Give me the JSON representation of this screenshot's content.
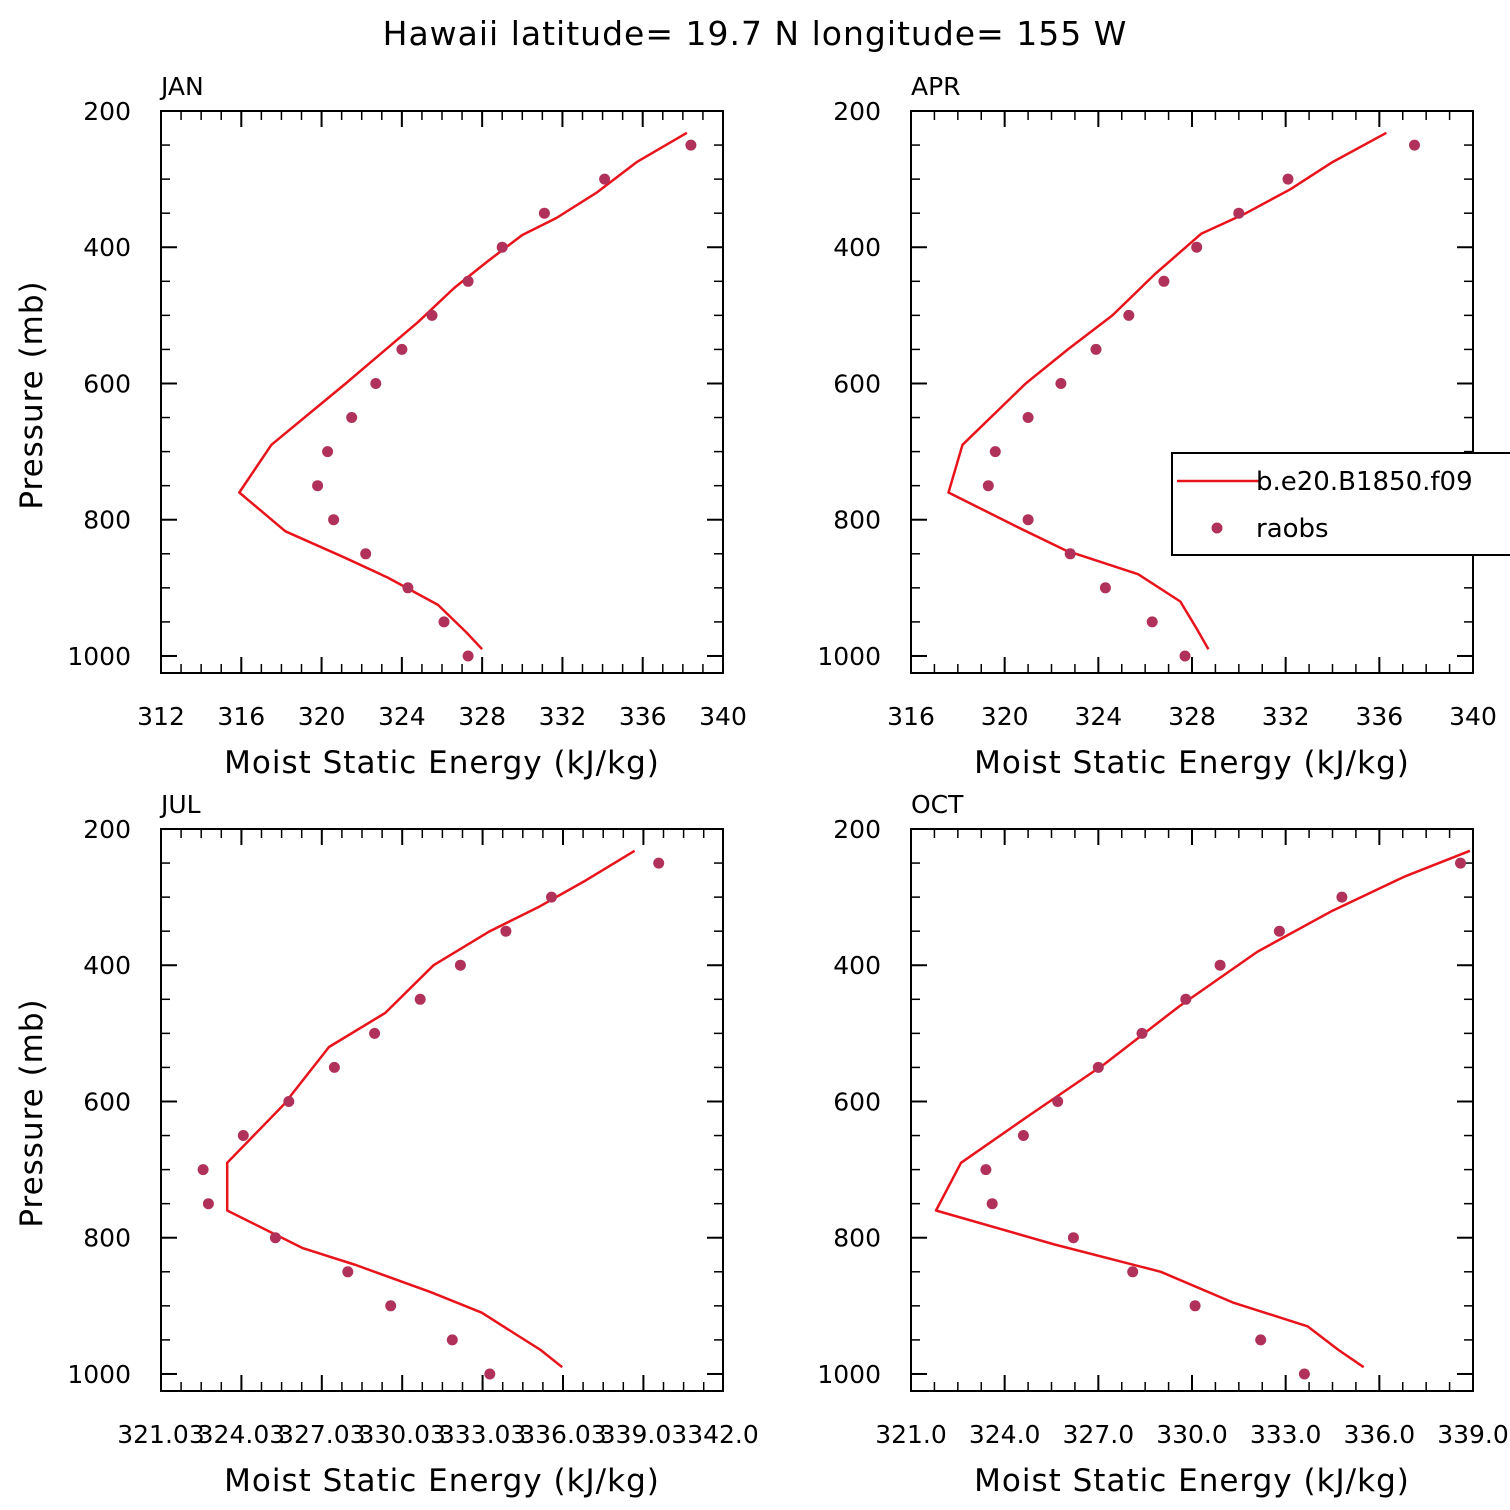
{
  "title": "Hawaii  latitude= 19.7 N longitude= 155 W",
  "chart_data": [
    {
      "type": "line",
      "panel": "JAN",
      "xlabel": "Moist Static Energy (kJ/kg)",
      "ylabel": "Pressure (mb)",
      "xlim": [
        312,
        340
      ],
      "ylim": [
        200,
        1025
      ],
      "y_inverted": true,
      "xticks": [
        312,
        316,
        320,
        324,
        328,
        332,
        336,
        340
      ],
      "xtick_labels": [
        "312",
        "316",
        "320",
        "324",
        "328",
        "332",
        "336",
        "340"
      ],
      "yticks": [
        200,
        400,
        600,
        800,
        1000
      ],
      "ytick_labels": [
        "200",
        "400",
        "600",
        "800",
        "1000"
      ],
      "series": [
        {
          "kind": "line",
          "color": "#e8141c",
          "x": [
            338.2,
            335.7,
            333.7,
            331.7,
            330.0,
            328.3,
            326.6,
            324.8,
            323.0,
            321.2,
            317.5,
            315.9,
            318.2,
            321.1,
            323.3,
            325.8,
            327.2,
            328.0
          ],
          "y": [
            232,
            275,
            320,
            357,
            382,
            420,
            460,
            510,
            555,
            600,
            690,
            760,
            817,
            855,
            885,
            925,
            965,
            990
          ]
        },
        {
          "kind": "scatter",
          "color": "#b0325a",
          "x": [
            338.4,
            334.1,
            331.1,
            329.0,
            327.3,
            325.5,
            324.0,
            322.7,
            321.5,
            320.3,
            319.8,
            320.6,
            322.2,
            324.3,
            326.1,
            327.3
          ],
          "y": [
            250,
            300,
            350,
            400,
            450,
            500,
            550,
            600,
            650,
            700,
            750,
            800,
            850,
            900,
            950,
            1000
          ]
        }
      ]
    },
    {
      "type": "line",
      "panel": "APR",
      "xlabel": "Moist Static Energy (kJ/kg)",
      "ylabel": "",
      "xlim": [
        316,
        340
      ],
      "ylim": [
        200,
        1025
      ],
      "y_inverted": true,
      "xticks": [
        316,
        320,
        324,
        328,
        332,
        336,
        340
      ],
      "xtick_labels": [
        "316",
        "320",
        "324",
        "328",
        "332",
        "336",
        "340"
      ],
      "yticks": [
        200,
        400,
        600,
        800,
        1000
      ],
      "ytick_labels": [
        "200",
        "400",
        "600",
        "800",
        "1000"
      ],
      "series": [
        {
          "kind": "line",
          "color": "#e8141c",
          "x": [
            336.3,
            334.0,
            332.2,
            330.3,
            328.4,
            326.4,
            324.6,
            322.7,
            320.9,
            318.2,
            317.6,
            320.5,
            322.6,
            325.7,
            327.5,
            328.2,
            328.7
          ],
          "y": [
            232,
            275,
            315,
            350,
            380,
            440,
            500,
            550,
            600,
            690,
            760,
            810,
            845,
            880,
            920,
            960,
            990
          ]
        },
        {
          "kind": "scatter",
          "color": "#b0325a",
          "x": [
            337.5,
            332.1,
            330.0,
            328.2,
            326.8,
            325.3,
            323.9,
            322.4,
            321.0,
            319.6,
            319.3,
            321.0,
            322.8,
            324.3,
            326.3,
            327.7
          ],
          "y": [
            250,
            300,
            350,
            400,
            450,
            500,
            550,
            600,
            650,
            700,
            750,
            800,
            850,
            900,
            950,
            1000
          ]
        }
      ]
    },
    {
      "type": "line",
      "panel": "JUL",
      "xlabel": "Moist Static Energy (kJ/kg)",
      "ylabel": "Pressure (mb)",
      "xlim": [
        321.03,
        342.0
      ],
      "ylim": [
        200,
        1025
      ],
      "y_inverted": true,
      "xticks": [
        321.03,
        324.03,
        327.03,
        330.03,
        333.03,
        336.03,
        339.03,
        342.0
      ],
      "xtick_labels": [
        "321.03",
        "324.03",
        "327.03",
        "330.03",
        "333.03",
        "336.03",
        "339.03",
        "342.0"
      ],
      "yticks": [
        200,
        400,
        600,
        800,
        1000
      ],
      "ytick_labels": [
        "200",
        "400",
        "600",
        "800",
        "1000"
      ],
      "series": [
        {
          "kind": "line",
          "color": "#e8141c",
          "x": [
            338.7,
            336.9,
            335.1,
            333.3,
            331.2,
            329.4,
            327.3,
            325.6,
            323.5,
            323.5,
            326.3,
            328.3,
            331.1,
            333.0,
            334.4,
            335.2,
            336.0
          ],
          "y": [
            232,
            275,
            315,
            350,
            400,
            470,
            520,
            605,
            690,
            760,
            815,
            840,
            880,
            910,
            945,
            965,
            990
          ]
        },
        {
          "kind": "scatter",
          "color": "#b0325a",
          "x": [
            339.6,
            335.6,
            333.9,
            332.2,
            330.7,
            329.0,
            327.5,
            325.8,
            324.1,
            322.6,
            322.8,
            325.3,
            328.0,
            329.6,
            331.9,
            333.3
          ],
          "y": [
            250,
            300,
            350,
            400,
            450,
            500,
            550,
            600,
            650,
            700,
            750,
            800,
            850,
            900,
            950,
            1000
          ]
        }
      ]
    },
    {
      "type": "line",
      "panel": "OCT",
      "xlabel": "Moist Static Energy (kJ/kg)",
      "ylabel": "",
      "xlim": [
        321.0,
        339.0
      ],
      "ylim": [
        200,
        1025
      ],
      "y_inverted": true,
      "xticks": [
        321.0,
        324.0,
        327.0,
        330.0,
        333.0,
        336.0,
        339.0
      ],
      "xtick_labels": [
        "321.0",
        "324.0",
        "327.0",
        "330.0",
        "333.0",
        "336.0",
        "339.0"
      ],
      "yticks": [
        200,
        400,
        600,
        800,
        1000
      ],
      "ytick_labels": [
        "200",
        "400",
        "600",
        "800",
        "1000"
      ],
      "series": [
        {
          "kind": "line",
          "color": "#e8141c",
          "x": [
            338.9,
            336.8,
            334.5,
            332.1,
            329.6,
            327.2,
            324.8,
            322.6,
            321.8,
            325.6,
            329.0,
            331.3,
            333.7,
            334.7,
            335.5
          ],
          "y": [
            232,
            270,
            320,
            380,
            460,
            545,
            620,
            690,
            760,
            810,
            850,
            895,
            930,
            965,
            990
          ]
        },
        {
          "kind": "scatter",
          "color": "#b0325a",
          "x": [
            338.6,
            334.8,
            332.8,
            330.9,
            329.8,
            328.4,
            327.0,
            325.7,
            324.6,
            323.4,
            323.6,
            326.2,
            328.1,
            330.1,
            332.2,
            333.6
          ],
          "y": [
            250,
            300,
            350,
            400,
            450,
            500,
            550,
            600,
            650,
            700,
            750,
            800,
            850,
            900,
            950,
            1000
          ]
        }
      ]
    }
  ],
  "legend": {
    "entries": [
      {
        "label": "b.e20.B1850.f09",
        "kind": "line",
        "color": "#e8141c"
      },
      {
        "label": "raobs",
        "kind": "marker",
        "color": "#b0325a"
      }
    ]
  }
}
